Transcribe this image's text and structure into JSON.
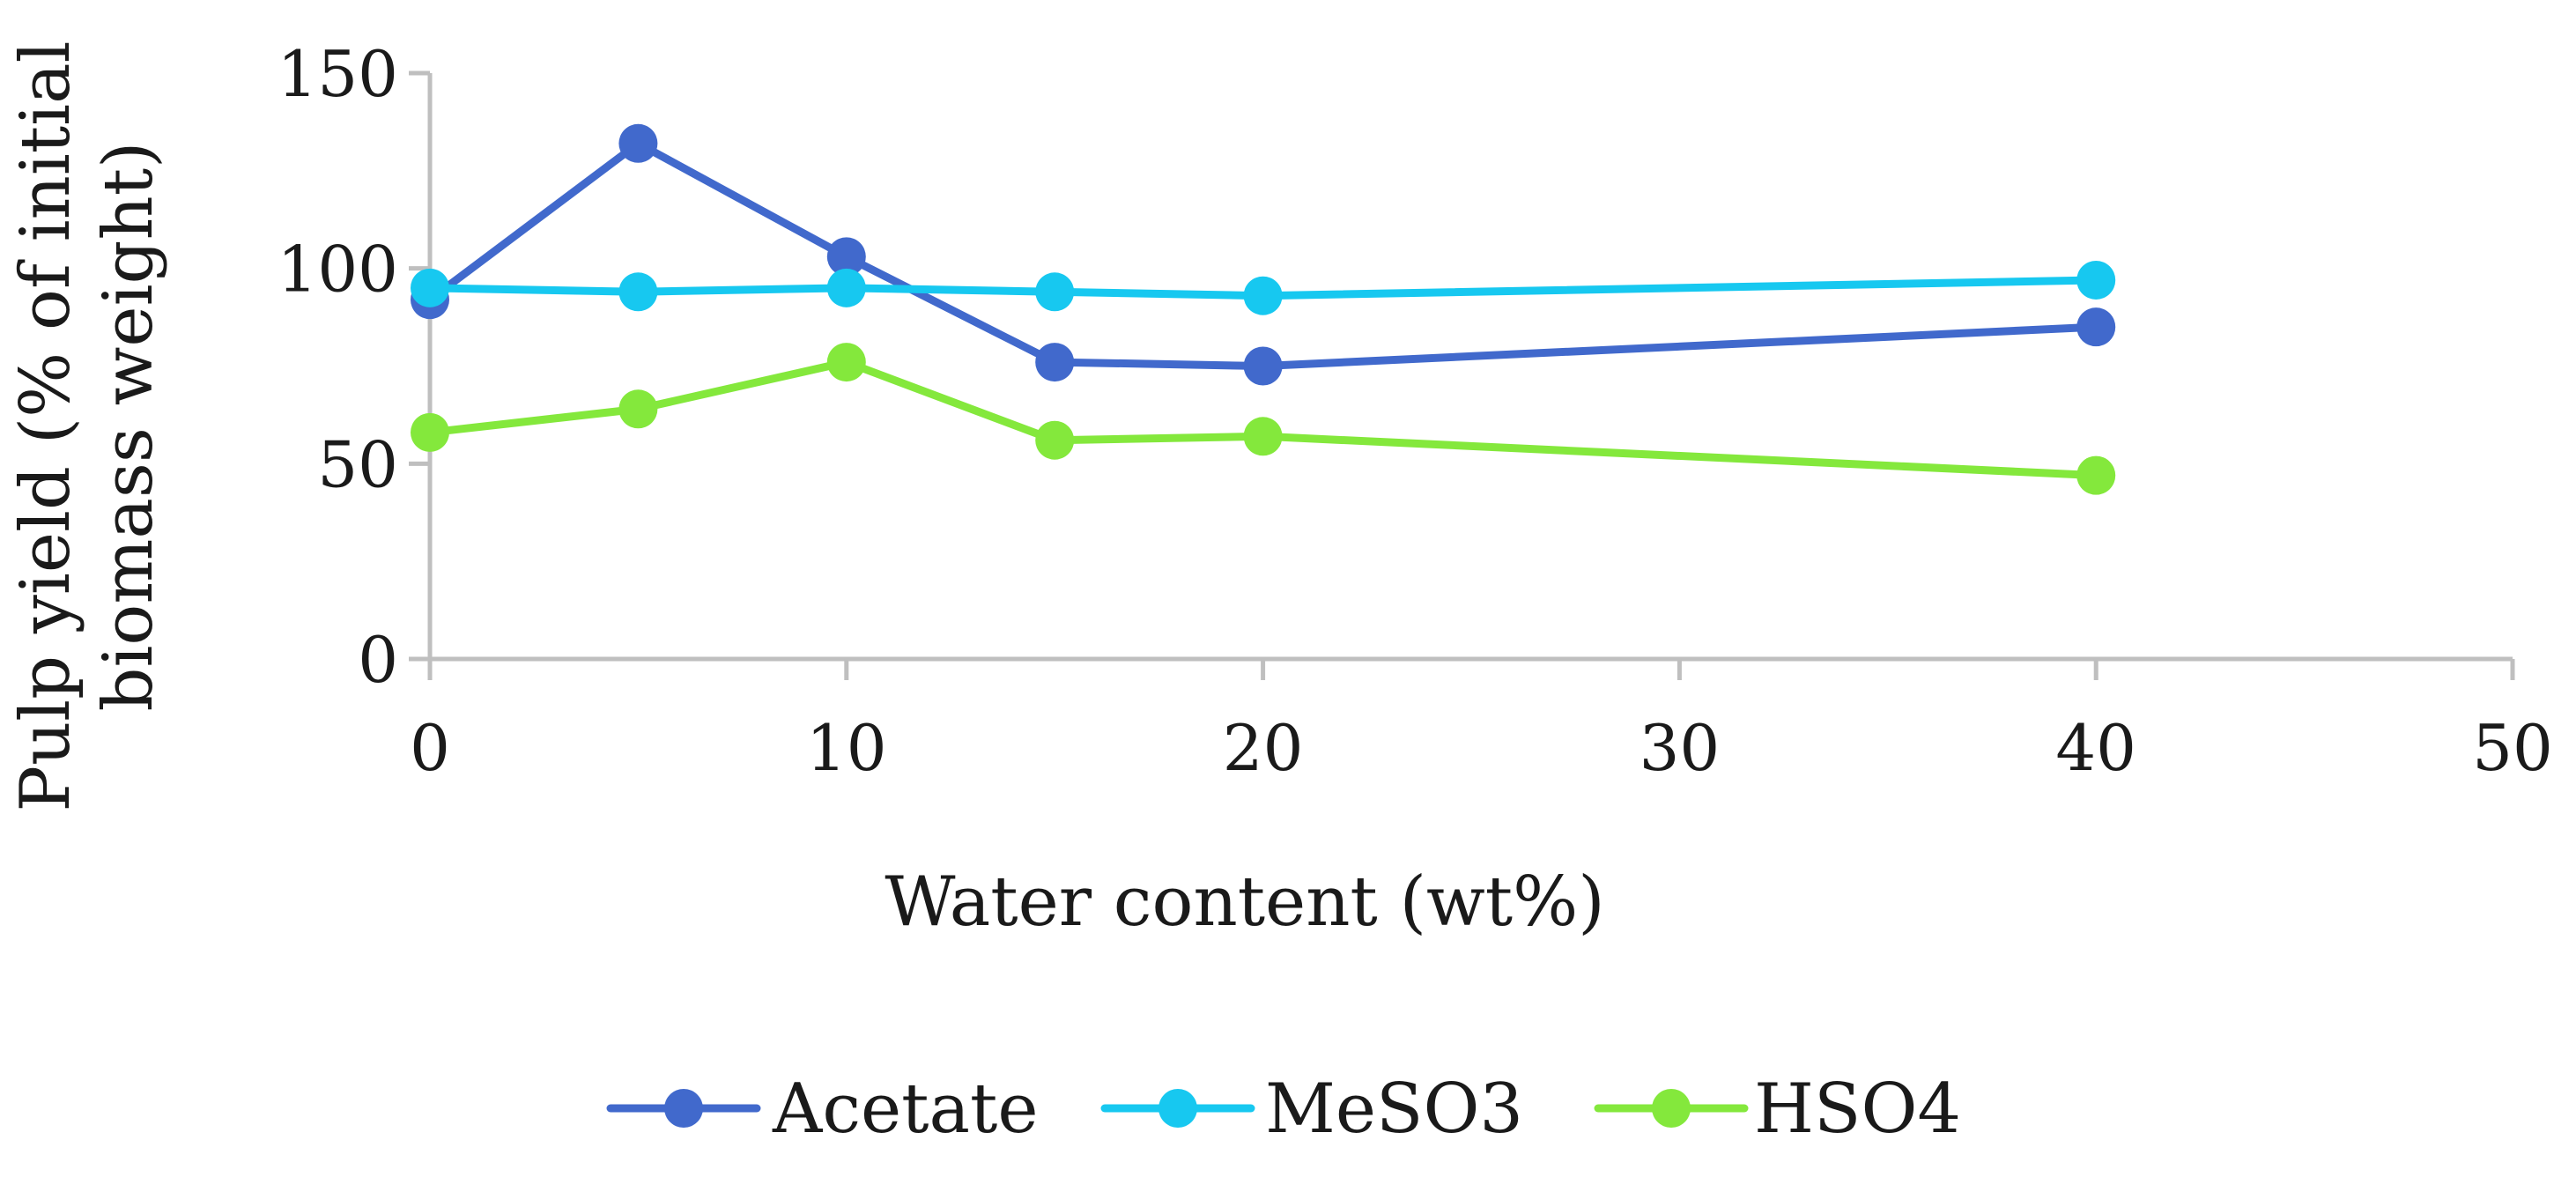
{
  "chart_data": {
    "type": "line",
    "title": "",
    "xlabel": "Water content (wt%)",
    "ylabel_lines": [
      "Pulp yield (% of initial",
      "biomass weight)"
    ],
    "x": [
      0,
      5,
      10,
      15,
      20,
      40
    ],
    "xlim": [
      0,
      50
    ],
    "ylim": [
      0,
      150
    ],
    "xticks": [
      "0",
      "10",
      "20",
      "30",
      "40",
      "50"
    ],
    "yticks": [
      "0",
      "50",
      "100",
      "150"
    ],
    "grid": false,
    "legend_position": "bottom-center",
    "series": [
      {
        "name": "Acetate",
        "color": "#4169CC",
        "values": [
          92,
          132,
          103,
          76,
          75,
          85
        ]
      },
      {
        "name": "MeSO3",
        "color": "#17C8F0",
        "values": [
          95,
          94,
          95,
          94,
          93,
          97
        ]
      },
      {
        "name": "HSO4",
        "color": "#84E83C",
        "values": [
          58,
          64,
          76,
          56,
          57,
          47
        ]
      }
    ]
  }
}
